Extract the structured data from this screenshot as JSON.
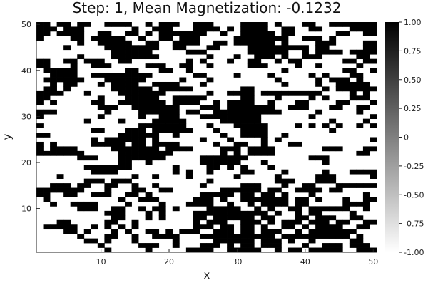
{
  "chart_data": {
    "type": "heatmap",
    "title": "Step: 1, Mean Magnetization: -0.1232",
    "xlabel": "x",
    "ylabel": "y",
    "xlim": [
      0.5,
      50.5
    ],
    "ylim": [
      0.5,
      50.5
    ],
    "x_ticks": [
      10,
      20,
      30,
      40,
      50
    ],
    "y_ticks": [
      10,
      20,
      30,
      40,
      50
    ],
    "grid": false,
    "colorbar": {
      "min": -1.0,
      "max": 1.0,
      "ticks": [
        "1.00",
        "0.75",
        "0.50",
        "0.25",
        "0",
        "-0.25",
        "-0.50",
        "-0.75",
        "-1.00"
      ],
      "tick_values": [
        1.0,
        0.75,
        0.5,
        0.25,
        0,
        -0.25,
        -0.5,
        -0.75,
        -1.0
      ],
      "low_color": "#ffffff",
      "high_color": "#000000"
    },
    "grid_size": [
      50,
      50
    ],
    "rows_top_to_bottom_legend": "each string is one row of spins from y=50 (top) down to y=1; '#' = +1 (black), '.' = -1 (white); left to right is x=1..50",
    "rows": [
      "##.##.##..####..#.###..###....####.#...##..#######",
      "###.###.......#..###...####.#.####..##..##....####",
      "##.####..##..##.#.#######..#..#####.##......##..##",
      "#....##.#####..#..##.###.....########..###.#......",
      "......#..#####..##..####..##.######.#....###....##",
      "....#.....########..##...##....#########.##.....##",
      "...........######.....###......######..#.####.####",
      "......#....#######.......#...#..###.#..###.....##.",
      "##..##.###..##........#.#...#..##..#.##......##.##",
      "##...#..###.....###..##..#.....###....#..#.....#..",
      ".#####.......##...##..#.............#........##..#",
      "..####..#########......##....#....#.....#.#...##..",
      ".######...######.....#...#.........#.....#.###.#..",
      "..#.##...#.####..####...#...........#....#..#####.",
      ".##.#......######.#####.......##..........#.######",
      "####...#....#######......#..####.#########....#.#.",
      "##.......#...#####..#####.....##...#....#.#...###.",
      "#.#.....##..#######.####..#.####..#...##....##...#",
      ".........###..#######...###.#######..###...##..##.",
      "###.......#....######.##..##########.....#.....#..",
      "#........#.....#..###...#########.......#........#",
      ".......#....#....#####.....######..........#....#.",
      "#..............#######...#...#####....#.#.#.#..#.#",
      "........##...###.######...#...####.........#......",
      "##..........######..#......#..####..#.............",
      "........#.######.#......#...#....#.#.............#",
      "#.#.....#####.##.####.....#..##..#...##...........",
      "#.####.....#######.####....###.####.......###...##",
      "#######.....########.......#.#.####............##.",
      "......###...#######.....#######.........###.......",
      "............##..#.......######...#........#.......",
      ".......#######......#....##.#.#...#...............",
      "........####........#.#..#....##....#.....#...####",
      "...#..........#..#....#......#.....#.....###.....#",
      ".......###.###...........#.........###...###......",
      "..###.##..##..#..#......#.....###...#..##...######",
      "#######...#...##..##.......######.##..####.##.....",
      "##..##..###..##.#.......#####.##.##.#...#.......#.",
      ".#..........#..###.....###.#..#######.##.#...#..##",
      "..#..####....#....#...####..#..#.####.##.....####.",
      "......###..##..#.##.#....#####..#.#..##.######..#.",
      "..........###...#.#....###########.#..#.##....#...",
      "...........##...#.#....##.######.##...##.###..##..",
      "...##.....##..#........#.###..###.#.###.###.##..##",
      ".#####..#.#.#.#........###.##.##.#..##.#.####..##.",
      "....##.#...#.#..##.#.###..###.##.###..#.#######...",
      "......#...##..#..####...###########.##########.#..",
      ".......##.#...#.....#.....######.###.#..#.....##..",
      ".........#.....###..#...###.#.##.###...#..###.###.",
      "..........#.....#.....####..#####..#.##.#####..###"
    ]
  }
}
